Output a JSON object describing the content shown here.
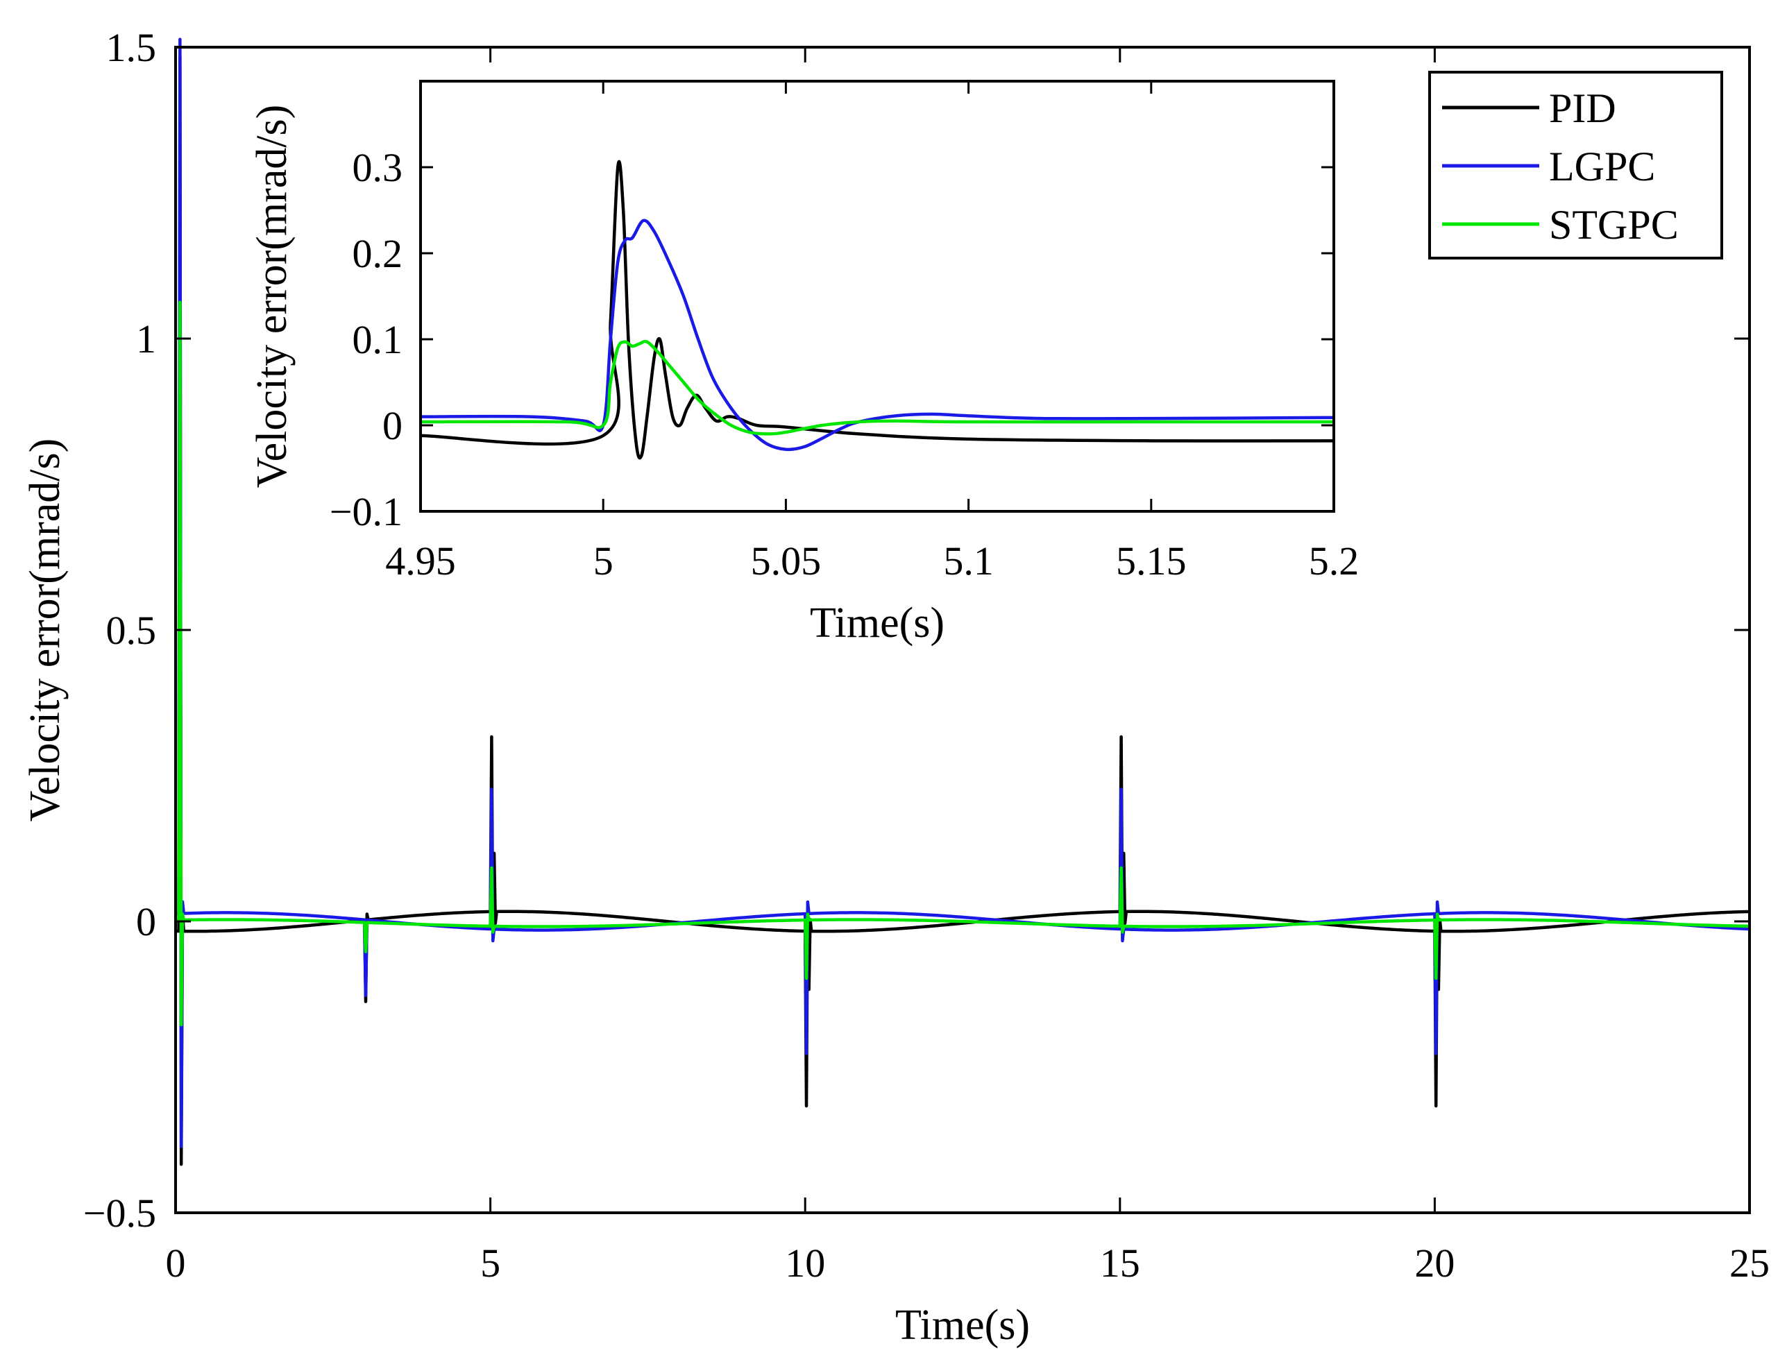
{
  "chart_data": [
    {
      "name": "main",
      "type": "line",
      "xlabel": "Time(s)",
      "ylabel": "Velocity error(mrad/s)",
      "xlim": [
        0,
        25
      ],
      "ylim": [
        -0.5,
        1.5
      ],
      "xticks": [
        0,
        5,
        10,
        15,
        20,
        25
      ],
      "yticks": [
        -0.5,
        0,
        0.5,
        1,
        1.5
      ],
      "xtick_labels": [
        "0",
        "5",
        "10",
        "15",
        "20",
        "25"
      ],
      "ytick_labels": [
        "−0.5",
        "0",
        "0.5",
        "1",
        "1.5"
      ],
      "legend": {
        "position": "top-right",
        "entries": [
          "PID",
          "LGPC",
          "STGPC"
        ]
      },
      "series": [
        {
          "name": "PID",
          "color": "#000000",
          "baseline": {
            "offset": 0,
            "amplitude": 0.017,
            "period": 10,
            "phase_zero": 2.8
          },
          "spikes": [
            {
              "t": 0.05,
              "values": [
                1.5,
                -0.4,
                0.03
              ]
            },
            {
              "t": 3.0,
              "values": [
                -0.14,
                0.01
              ]
            },
            {
              "t": 5.0,
              "values": [
                0.3,
                -0.04,
                0.1,
                -0.02
              ]
            },
            {
              "t": 10.0,
              "values": [
                -0.3,
                0.04,
                -0.1,
                0.02
              ]
            },
            {
              "t": 15.0,
              "values": [
                0.3,
                -0.04,
                0.1,
                -0.02
              ]
            },
            {
              "t": 20.0,
              "values": [
                -0.3,
                0.04,
                -0.1,
                0.02
              ]
            }
          ]
        },
        {
          "name": "LGPC",
          "color": "#1a1ae6",
          "baseline": {
            "offset": 0,
            "amplitude": -0.015,
            "period": 10,
            "phase_zero": 3.3
          },
          "spikes": [
            {
              "t": 0.05,
              "values": [
                1.5,
                -0.4,
                0.02
              ]
            },
            {
              "t": 3.0,
              "values": [
                -0.13,
                0.0
              ]
            },
            {
              "t": 5.0,
              "values": [
                0.24,
                -0.02
              ]
            },
            {
              "t": 10.0,
              "values": [
                -0.24,
                0.02
              ]
            },
            {
              "t": 15.0,
              "values": [
                0.24,
                -0.02
              ]
            },
            {
              "t": 20.0,
              "values": [
                -0.24,
                0.02
              ]
            }
          ]
        },
        {
          "name": "STGPC",
          "color": "#00e600",
          "baseline": {
            "offset": -0.003,
            "amplitude": -0.006,
            "period": 10,
            "phase_zero": 3.3
          },
          "spikes": [
            {
              "t": 0.05,
              "values": [
                1.06,
                -0.18,
                0.01
              ]
            },
            {
              "t": 3.0,
              "values": [
                -0.05,
                0.0
              ]
            },
            {
              "t": 5.0,
              "values": [
                0.1,
                -0.01
              ]
            },
            {
              "t": 10.0,
              "values": [
                -0.1,
                0.01
              ]
            },
            {
              "t": 15.0,
              "values": [
                0.1,
                -0.01
              ]
            },
            {
              "t": 20.0,
              "values": [
                -0.1,
                0.01
              ]
            }
          ]
        }
      ]
    },
    {
      "name": "inset",
      "type": "line",
      "xlabel": "Time(s)",
      "ylabel": "Velocity error(mrad/s)",
      "xlim": [
        4.95,
        5.2
      ],
      "ylim": [
        -0.1,
        0.4
      ],
      "xticks": [
        4.95,
        5.0,
        5.05,
        5.1,
        5.15,
        5.2
      ],
      "yticks": [
        -0.1,
        0,
        0.1,
        0.2,
        0.3
      ],
      "xtick_labels": [
        "4.95",
        "5",
        "5.05",
        "5.1",
        "5.15",
        "5.2"
      ],
      "ytick_labels": [
        "−0.1",
        "0",
        "0.1",
        "0.2",
        "0.3"
      ],
      "series": [
        {
          "name": "PID",
          "color": "#000000",
          "x": [
            4.95,
            5.0,
            5.002,
            5.004,
            5.0055,
            5.007,
            5.009,
            5.0105,
            5.012,
            5.014,
            5.0155,
            5.017,
            5.019,
            5.021,
            5.023,
            5.0255,
            5.028,
            5.031,
            5.034,
            5.037,
            5.042,
            5.05,
            5.07,
            5.1,
            5.15,
            5.2
          ],
          "values": [
            -0.012,
            -0.012,
            0.12,
            0.3,
            0.25,
            0.09,
            -0.02,
            -0.035,
            0.01,
            0.08,
            0.1,
            0.06,
            0.01,
            0.0,
            0.02,
            0.035,
            0.02,
            0.005,
            0.01,
            0.008,
            0.0,
            -0.002,
            -0.01,
            -0.016,
            -0.018,
            -0.018
          ]
        },
        {
          "name": "LGPC",
          "color": "#1a1ae6",
          "x": [
            4.95,
            4.98,
            4.995,
            5.0,
            5.002,
            5.004,
            5.006,
            5.008,
            5.011,
            5.014,
            5.018,
            5.022,
            5.026,
            5.03,
            5.035,
            5.04,
            5.045,
            5.05,
            5.055,
            5.06,
            5.065,
            5.07,
            5.08,
            5.09,
            5.1,
            5.12,
            5.15,
            5.2
          ],
          "values": [
            0.01,
            0.01,
            0.005,
            0.0,
            0.1,
            0.19,
            0.215,
            0.218,
            0.238,
            0.225,
            0.19,
            0.15,
            0.1,
            0.055,
            0.02,
            -0.005,
            -0.022,
            -0.028,
            -0.025,
            -0.015,
            -0.004,
            0.004,
            0.011,
            0.013,
            0.011,
            0.008,
            0.008,
            0.009
          ]
        },
        {
          "name": "STGPC",
          "color": "#00e600",
          "x": [
            4.95,
            4.99,
            5.0,
            5.002,
            5.004,
            5.006,
            5.008,
            5.01,
            5.012,
            5.015,
            5.018,
            5.022,
            5.026,
            5.03,
            5.035,
            5.04,
            5.045,
            5.05,
            5.06,
            5.07,
            5.08,
            5.1,
            5.15,
            5.2
          ],
          "values": [
            0.004,
            0.004,
            0.0,
            0.05,
            0.09,
            0.097,
            0.092,
            0.095,
            0.097,
            0.085,
            0.07,
            0.05,
            0.03,
            0.015,
            0.0,
            -0.008,
            -0.01,
            -0.008,
            0.0,
            0.004,
            0.005,
            0.004,
            0.004,
            0.004
          ]
        }
      ]
    }
  ]
}
